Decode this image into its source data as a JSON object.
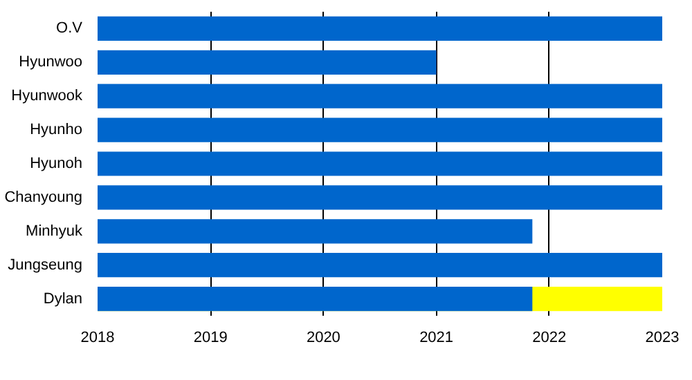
{
  "chart_data": {
    "type": "bar",
    "orientation": "horizontal",
    "categories": [
      "O.V",
      "Hyunwoo",
      "Hyunwook",
      "Hyunho",
      "Hyunoh",
      "Chanyoung",
      "Minhyuk",
      "Jungseung",
      "Dylan"
    ],
    "series": [
      {
        "color": "#ffff00",
        "values": [
          null,
          null,
          null,
          null,
          null,
          null,
          null,
          null,
          2023
        ]
      },
      {
        "color": "#0066cc",
        "values": [
          2023,
          2021,
          2023,
          2023,
          2023,
          2023,
          2021.85,
          2023,
          2021.85
        ]
      }
    ],
    "xlim": [
      2018,
      2023
    ],
    "xticks": [
      2018,
      2019,
      2020,
      2021,
      2022,
      2023
    ],
    "grid": "x"
  }
}
